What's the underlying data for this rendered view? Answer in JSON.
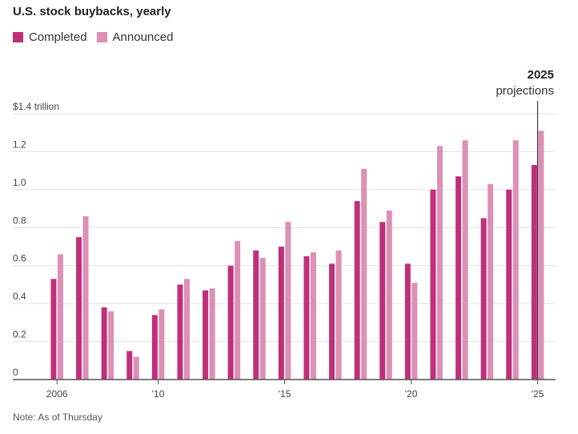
{
  "title": "U.S. stock buybacks, yearly",
  "note": "Note: As of Thursday",
  "colors": {
    "completed": "#c0307a",
    "announced": "#dd8fb4",
    "axis": "#555555",
    "grid": "#e0e0e0"
  },
  "projection_label": {
    "year": "2025",
    "text": "projections"
  },
  "chart_data": {
    "type": "bar",
    "title": "U.S. stock buybacks, yearly",
    "xlabel": "",
    "ylabel": "",
    "ylim": [
      0,
      1.4
    ],
    "y_ticks": [
      {
        "value": 0,
        "label": "0"
      },
      {
        "value": 0.2,
        "label": "0.2"
      },
      {
        "value": 0.4,
        "label": "0.4"
      },
      {
        "value": 0.6,
        "label": "0.6"
      },
      {
        "value": 0.8,
        "label": "0.8"
      },
      {
        "value": 1.0,
        "label": "1.0"
      },
      {
        "value": 1.2,
        "label": "1.2"
      },
      {
        "value": 1.4,
        "label": "$1.4 trillion"
      }
    ],
    "x_tick_labels": [
      {
        "year": 2006,
        "label": "2006"
      },
      {
        "year": 2010,
        "label": "'10"
      },
      {
        "year": 2015,
        "label": "'15"
      },
      {
        "year": 2020,
        "label": "'20"
      },
      {
        "year": 2025,
        "label": "'25"
      }
    ],
    "categories": [
      2006,
      2007,
      2008,
      2009,
      2010,
      2011,
      2012,
      2013,
      2014,
      2015,
      2016,
      2017,
      2018,
      2019,
      2020,
      2021,
      2022,
      2023,
      2024,
      2025
    ],
    "series": [
      {
        "name": "Completed",
        "values": [
          0.53,
          0.75,
          0.38,
          0.15,
          0.34,
          0.5,
          0.47,
          0.6,
          0.68,
          0.7,
          0.65,
          0.61,
          0.94,
          0.83,
          0.61,
          1.0,
          1.07,
          0.85,
          1.0,
          1.13
        ]
      },
      {
        "name": "Announced",
        "values": [
          0.66,
          0.86,
          0.36,
          0.12,
          0.37,
          0.53,
          0.48,
          0.73,
          0.64,
          0.83,
          0.67,
          0.68,
          1.11,
          0.89,
          0.51,
          1.23,
          1.26,
          1.03,
          1.26,
          1.31
        ]
      }
    ],
    "grid": true,
    "legend": "top-left"
  }
}
